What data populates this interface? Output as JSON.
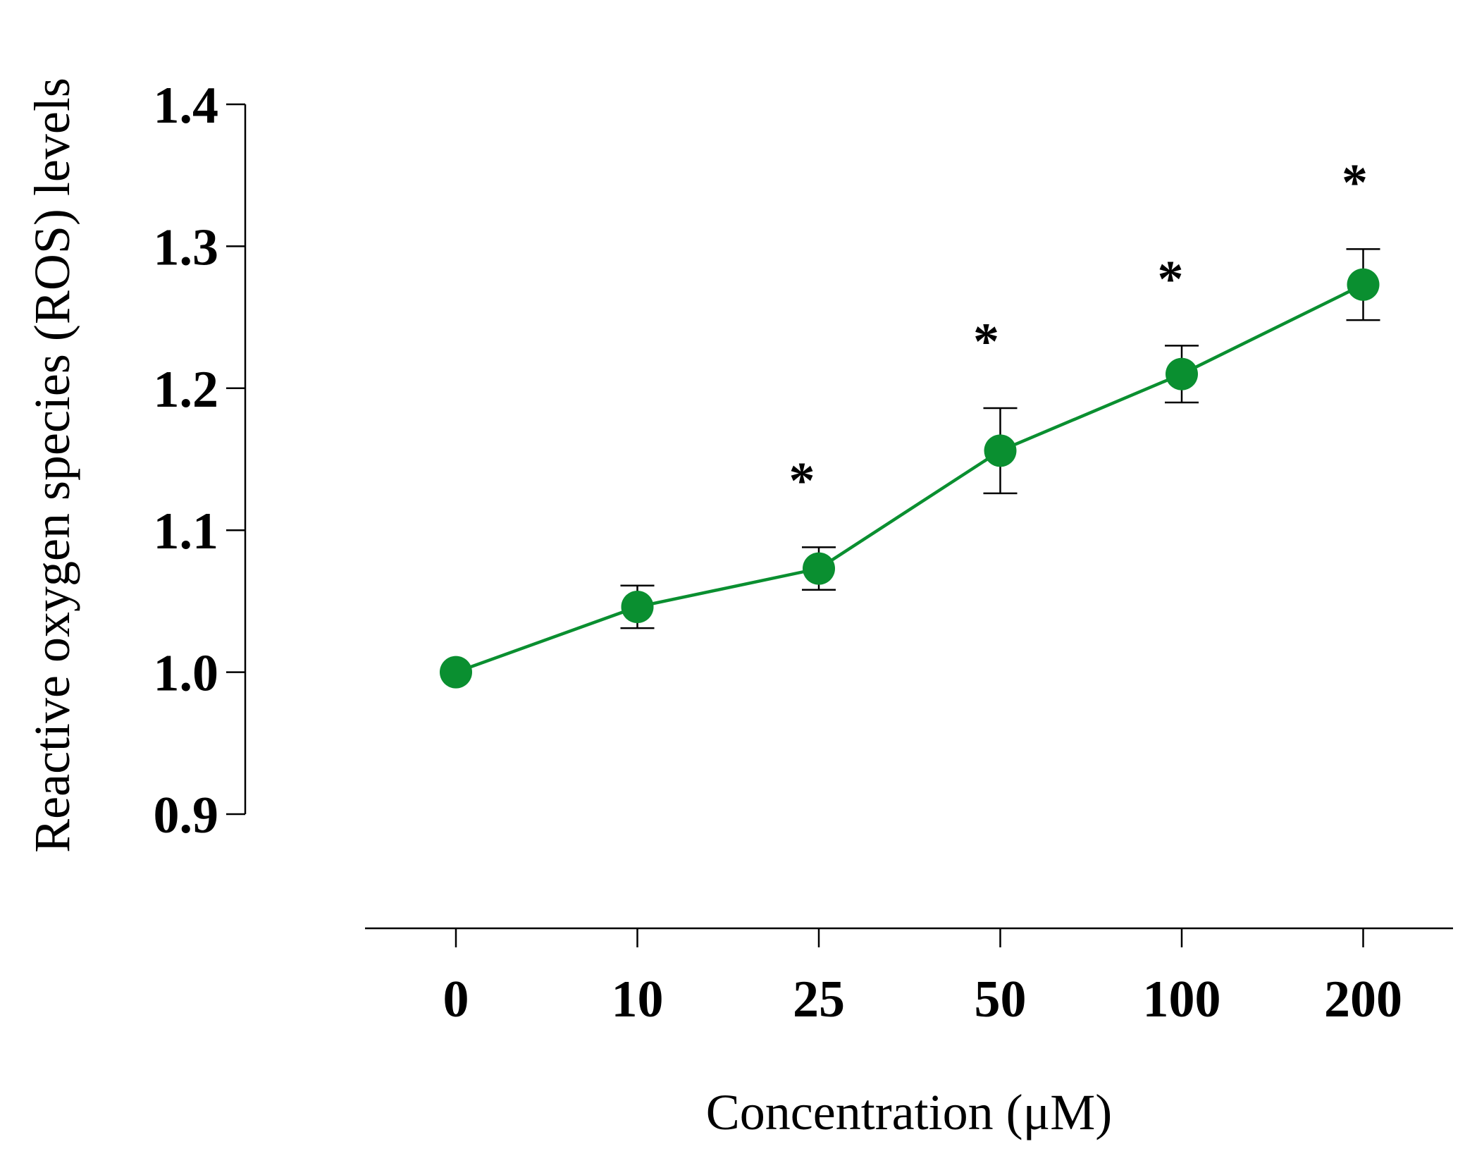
{
  "chart_data": {
    "type": "line",
    "title": "",
    "xlabel": "Concentration (μM)",
    "ylabel": "Reactive oxygen species (ROS) levels",
    "categories": [
      "0",
      "10",
      "25",
      "50",
      "100",
      "200"
    ],
    "ylim": [
      0.9,
      1.4
    ],
    "yticks": [
      "0.9",
      "1.0",
      "1.1",
      "1.2",
      "1.3",
      "1.4"
    ],
    "series": [
      {
        "name": "ROS levels",
        "color": "#0a8f30",
        "values": [
          1.0,
          1.046,
          1.073,
          1.156,
          1.21,
          1.273
        ],
        "errors": [
          0.0,
          0.015,
          0.015,
          0.03,
          0.02,
          0.025
        ],
        "significance": [
          "",
          "",
          "*",
          "*",
          "*",
          "*"
        ]
      }
    ],
    "grid": false,
    "legend": "none"
  }
}
